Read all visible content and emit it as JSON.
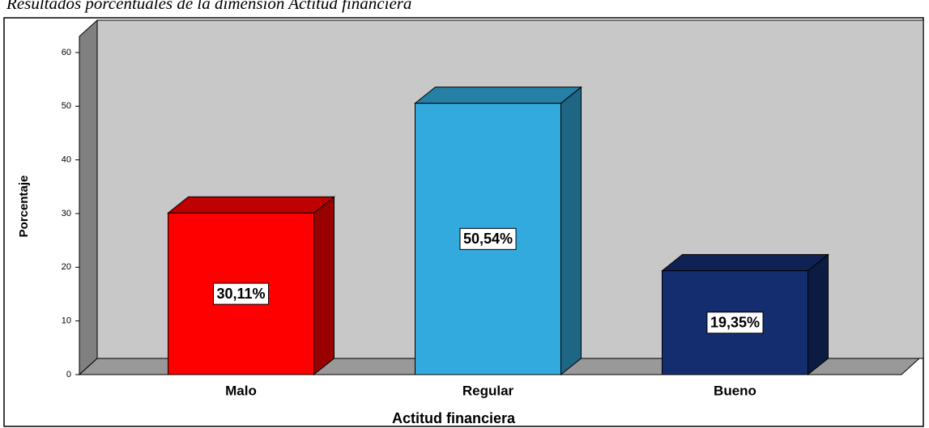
{
  "chart_data": {
    "type": "bar",
    "title": "Resultados porcentuales de la dimensión Actitud financiera",
    "x_label": "Actitud financiera",
    "y_label": "Porcentaje",
    "categories": [
      "Malo",
      "Regular",
      "Bueno"
    ],
    "values": [
      30.11,
      50.54,
      19.35
    ],
    "value_labels": [
      "30,11%",
      "50,54%",
      "19,35%"
    ],
    "colors": [
      "#ff0000",
      "#33aadd",
      "#142d6e"
    ],
    "ylim": [
      0,
      63
    ],
    "yticks": [
      0,
      10,
      20,
      30,
      40,
      50,
      60
    ]
  }
}
